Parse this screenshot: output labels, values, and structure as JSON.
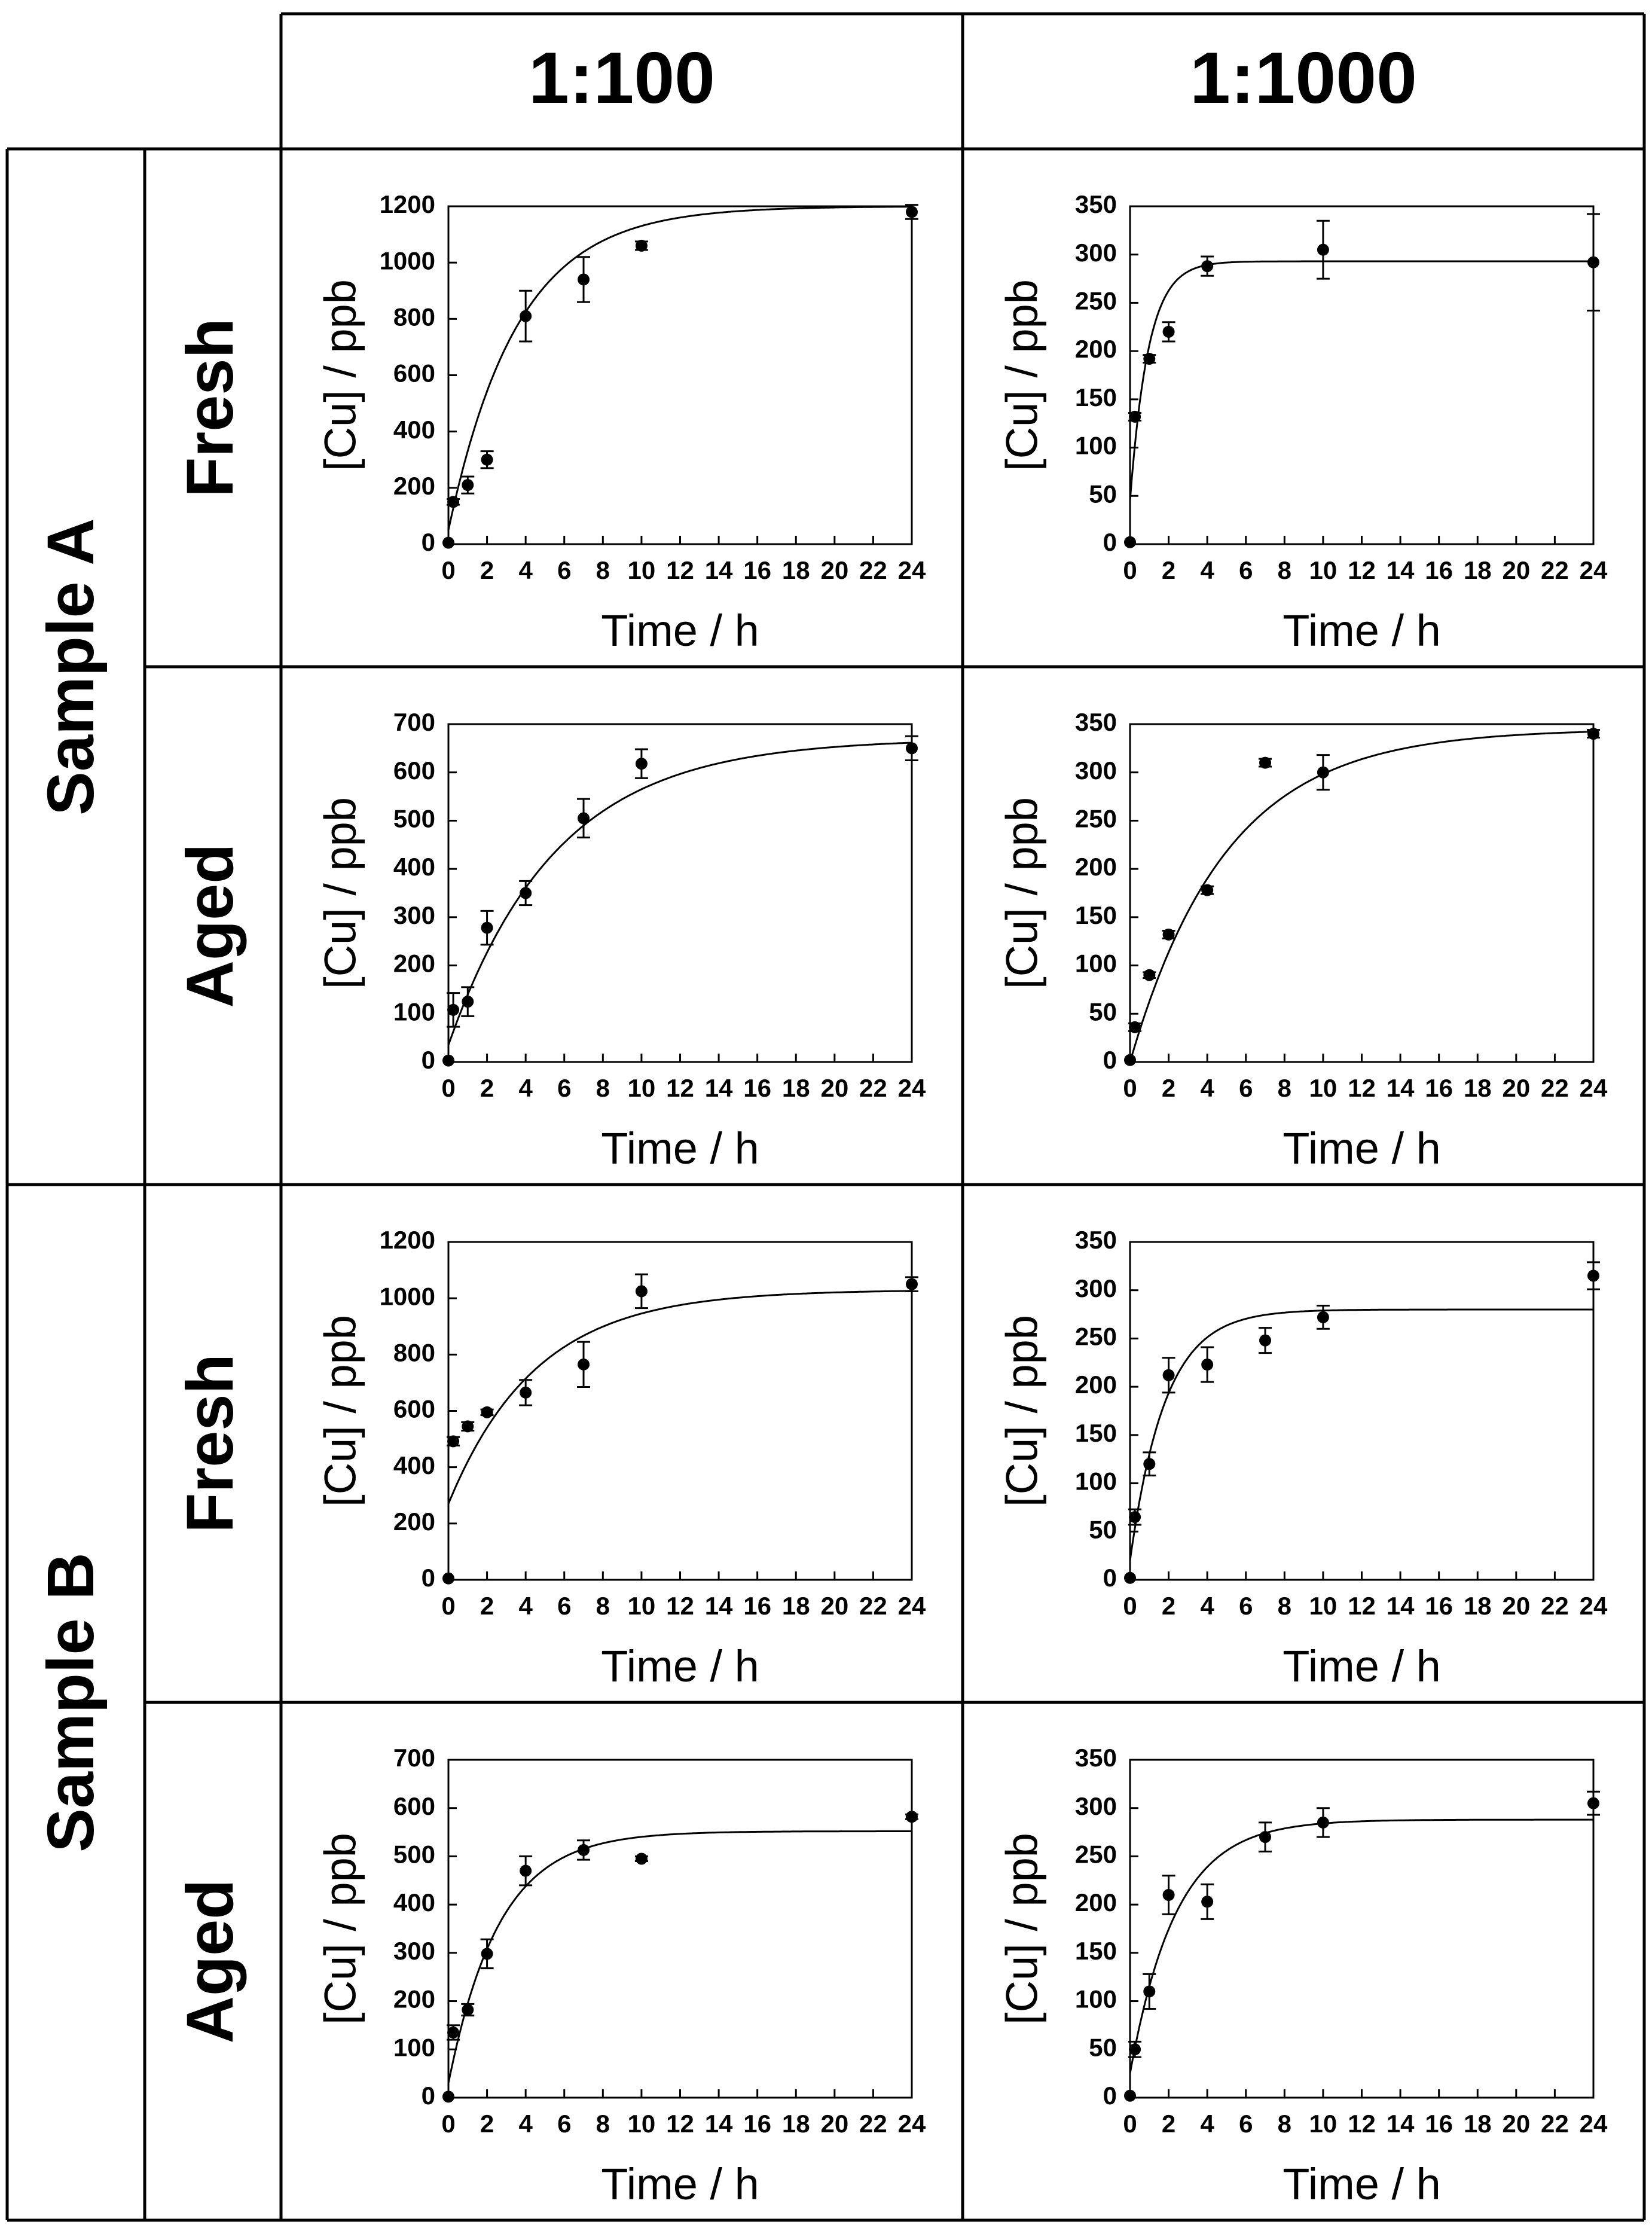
{
  "col_headers": [
    "1:100",
    "1:1000"
  ],
  "sample_labels": [
    "Sample A",
    "Sample B"
  ],
  "condition_labels": [
    "Fresh",
    "Aged",
    "Fresh",
    "Aged"
  ],
  "chart_data": [
    {
      "type": "scatter",
      "panel": "Sample A / Fresh / 1:100",
      "xlabel": "Time / h",
      "ylabel": "[Cu] / ppb",
      "xlim": [
        0,
        24
      ],
      "ylim": [
        0,
        1200
      ],
      "xticks": [
        0,
        2,
        4,
        6,
        8,
        10,
        12,
        14,
        16,
        18,
        20,
        22,
        24
      ],
      "yticks": [
        0,
        200,
        400,
        600,
        800,
        1000,
        1200
      ],
      "points": [
        {
          "x": 0,
          "y": 5,
          "err": 0
        },
        {
          "x": 0.25,
          "y": 150,
          "err": 10
        },
        {
          "x": 1,
          "y": 210,
          "err": 30
        },
        {
          "x": 2,
          "y": 300,
          "err": 30
        },
        {
          "x": 4,
          "y": 810,
          "err": 90
        },
        {
          "x": 7,
          "y": 940,
          "err": 80
        },
        {
          "x": 10,
          "y": 1060,
          "err": 15
        },
        {
          "x": 24,
          "y": 1180,
          "err": 25
        }
      ],
      "fit": {
        "y0": 50,
        "ymax": 1200,
        "k": 0.28
      }
    },
    {
      "type": "scatter",
      "panel": "Sample A / Fresh / 1:1000",
      "xlabel": "Time / h",
      "ylabel": "[Cu] / ppb",
      "xlim": [
        0,
        24
      ],
      "ylim": [
        0,
        350
      ],
      "xticks": [
        0,
        2,
        4,
        6,
        8,
        10,
        12,
        14,
        16,
        18,
        20,
        22,
        24
      ],
      "yticks": [
        0,
        50,
        100,
        150,
        200,
        250,
        300,
        350
      ],
      "points": [
        {
          "x": 0,
          "y": 2,
          "err": 0
        },
        {
          "x": 0.25,
          "y": 132,
          "err": 4
        },
        {
          "x": 1,
          "y": 192,
          "err": 4
        },
        {
          "x": 2,
          "y": 220,
          "err": 10
        },
        {
          "x": 4,
          "y": 288,
          "err": 10
        },
        {
          "x": 10,
          "y": 305,
          "err": 30
        },
        {
          "x": 24,
          "y": 292,
          "err": 50
        }
      ],
      "fit": {
        "y0": 45,
        "ymax": 293,
        "k": 1.05
      }
    },
    {
      "type": "scatter",
      "panel": "Sample A / Aged / 1:100",
      "xlabel": "Time / h",
      "ylabel": "[Cu] / ppb",
      "xlim": [
        0,
        24
      ],
      "ylim": [
        0,
        700
      ],
      "xticks": [
        0,
        2,
        4,
        6,
        8,
        10,
        12,
        14,
        16,
        18,
        20,
        22,
        24
      ],
      "yticks": [
        0,
        100,
        200,
        300,
        400,
        500,
        600,
        700
      ],
      "points": [
        {
          "x": 0,
          "y": 3,
          "err": 0
        },
        {
          "x": 0.25,
          "y": 108,
          "err": 35
        },
        {
          "x": 1,
          "y": 125,
          "err": 30
        },
        {
          "x": 2,
          "y": 278,
          "err": 35
        },
        {
          "x": 4,
          "y": 350,
          "err": 25
        },
        {
          "x": 7,
          "y": 505,
          "err": 40
        },
        {
          "x": 10,
          "y": 618,
          "err": 30
        },
        {
          "x": 24,
          "y": 650,
          "err": 25
        }
      ],
      "fit": {
        "y0": 35,
        "ymax": 670,
        "k": 0.18
      }
    },
    {
      "type": "scatter",
      "panel": "Sample A / Aged / 1:1000",
      "xlabel": "Time / h",
      "ylabel": "[Cu] / ppb",
      "xlim": [
        0,
        24
      ],
      "ylim": [
        0,
        350
      ],
      "xticks": [
        0,
        2,
        4,
        6,
        8,
        10,
        12,
        14,
        16,
        18,
        20,
        22,
        24
      ],
      "yticks": [
        0,
        50,
        100,
        150,
        200,
        250,
        300,
        350
      ],
      "points": [
        {
          "x": 0,
          "y": 2,
          "err": 0
        },
        {
          "x": 0.25,
          "y": 36,
          "err": 4
        },
        {
          "x": 1,
          "y": 90,
          "err": 3
        },
        {
          "x": 2,
          "y": 132,
          "err": 4
        },
        {
          "x": 4,
          "y": 178,
          "err": 4
        },
        {
          "x": 7,
          "y": 310,
          "err": 4
        },
        {
          "x": 10,
          "y": 300,
          "err": 18
        },
        {
          "x": 24,
          "y": 340,
          "err": 4
        }
      ],
      "fit": {
        "y0": 0,
        "ymax": 345,
        "k": 0.2
      }
    },
    {
      "type": "scatter",
      "panel": "Sample B / Fresh / 1:100",
      "xlabel": "Time / h",
      "ylabel": "[Cu] / ppb",
      "xlim": [
        0,
        24
      ],
      "ylim": [
        0,
        1200
      ],
      "xticks": [
        0,
        2,
        4,
        6,
        8,
        10,
        12,
        14,
        16,
        18,
        20,
        22,
        24
      ],
      "yticks": [
        0,
        200,
        400,
        600,
        800,
        1000,
        1200
      ],
      "points": [
        {
          "x": 0,
          "y": 5,
          "err": 0
        },
        {
          "x": 0.25,
          "y": 492,
          "err": 15
        },
        {
          "x": 1,
          "y": 545,
          "err": 15
        },
        {
          "x": 2,
          "y": 595,
          "err": 10
        },
        {
          "x": 4,
          "y": 665,
          "err": 45
        },
        {
          "x": 7,
          "y": 765,
          "err": 80
        },
        {
          "x": 10,
          "y": 1025,
          "err": 60
        },
        {
          "x": 24,
          "y": 1050,
          "err": 25
        }
      ],
      "fit": {
        "y0": 270,
        "ymax": 1030,
        "k": 0.22
      }
    },
    {
      "type": "scatter",
      "panel": "Sample B / Fresh / 1:1000",
      "xlabel": "Time / h",
      "ylabel": "[Cu] / ppb",
      "xlim": [
        0,
        24
      ],
      "ylim": [
        0,
        350
      ],
      "xticks": [
        0,
        2,
        4,
        6,
        8,
        10,
        12,
        14,
        16,
        18,
        20,
        22,
        24
      ],
      "yticks": [
        0,
        50,
        100,
        150,
        200,
        250,
        300,
        350
      ],
      "points": [
        {
          "x": 0,
          "y": 2,
          "err": 0
        },
        {
          "x": 0.25,
          "y": 65,
          "err": 8
        },
        {
          "x": 1,
          "y": 120,
          "err": 12
        },
        {
          "x": 2,
          "y": 212,
          "err": 18
        },
        {
          "x": 4,
          "y": 223,
          "err": 18
        },
        {
          "x": 7,
          "y": 248,
          "err": 13
        },
        {
          "x": 10,
          "y": 272,
          "err": 12
        },
        {
          "x": 24,
          "y": 315,
          "err": 14
        }
      ],
      "fit": {
        "y0": 20,
        "ymax": 280,
        "k": 0.55
      }
    },
    {
      "type": "scatter",
      "panel": "Sample B / Aged / 1:100",
      "xlabel": "Time / h",
      "ylabel": "[Cu] / ppb",
      "xlim": [
        0,
        24
      ],
      "ylim": [
        0,
        700
      ],
      "xticks": [
        0,
        2,
        4,
        6,
        8,
        10,
        12,
        14,
        16,
        18,
        20,
        22,
        24
      ],
      "yticks": [
        0,
        100,
        200,
        300,
        400,
        500,
        600,
        700
      ],
      "points": [
        {
          "x": 0,
          "y": 2,
          "err": 0
        },
        {
          "x": 0.25,
          "y": 135,
          "err": 15
        },
        {
          "x": 1,
          "y": 182,
          "err": 12
        },
        {
          "x": 2,
          "y": 298,
          "err": 30
        },
        {
          "x": 4,
          "y": 470,
          "err": 30
        },
        {
          "x": 7,
          "y": 513,
          "err": 20
        },
        {
          "x": 10,
          "y": 495,
          "err": 5
        },
        {
          "x": 24,
          "y": 582,
          "err": 5
        }
      ],
      "fit": {
        "y0": 30,
        "ymax": 552,
        "k": 0.38
      }
    },
    {
      "type": "scatter",
      "panel": "Sample B / Aged / 1:1000",
      "xlabel": "Time / h",
      "ylabel": "[Cu] / ppb",
      "xlim": [
        0,
        24
      ],
      "ylim": [
        0,
        350
      ],
      "xticks": [
        0,
        2,
        4,
        6,
        8,
        10,
        12,
        14,
        16,
        18,
        20,
        22,
        24
      ],
      "yticks": [
        0,
        50,
        100,
        150,
        200,
        250,
        300,
        350
      ],
      "points": [
        {
          "x": 0,
          "y": 2,
          "err": 0
        },
        {
          "x": 0.25,
          "y": 50,
          "err": 8
        },
        {
          "x": 1,
          "y": 110,
          "err": 18
        },
        {
          "x": 2,
          "y": 210,
          "err": 20
        },
        {
          "x": 4,
          "y": 203,
          "err": 18
        },
        {
          "x": 7,
          "y": 270,
          "err": 15
        },
        {
          "x": 10,
          "y": 285,
          "err": 15
        },
        {
          "x": 24,
          "y": 305,
          "err": 12
        }
      ],
      "fit": {
        "y0": 25,
        "ymax": 288,
        "k": 0.42
      }
    }
  ]
}
